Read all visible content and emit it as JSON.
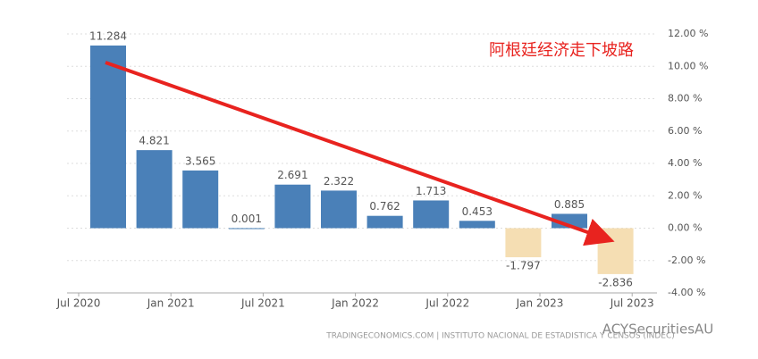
{
  "chart_data": {
    "type": "bar",
    "annotation": "阿根廷经济走下坡路",
    "source": "TRADINGECONOMICS.COM | INSTITUTO NACIONAL DE ESTADISTICA Y CENSOS (INDEC)",
    "watermark": "ACYSecuritiesAU",
    "categories": [
      "Jul 2020",
      null,
      "Jan 2021",
      null,
      "Jul 2021",
      null,
      "Jan 2022",
      null,
      "Jul 2022",
      null,
      "Jan 2023",
      null,
      "Jul 2023"
    ],
    "values": [
      11.284,
      4.821,
      3.565,
      0.001,
      2.691,
      2.322,
      0.762,
      1.713,
      0.453,
      -1.797,
      0.885,
      -2.836,
      null
    ],
    "color": "#4a80b8",
    "negative_color": "#f5deb3",
    "ylim": [
      -4,
      12
    ],
    "yticks": [
      {
        "value": -4,
        "label": "-4.00 %"
      },
      {
        "value": -2,
        "label": "-2.00 %"
      },
      {
        "value": 0,
        "label": "0.00 %"
      },
      {
        "value": 2,
        "label": "2.00 %"
      },
      {
        "value": 4,
        "label": "4.00 %"
      },
      {
        "value": 6,
        "label": "6.00 %"
      },
      {
        "value": 8,
        "label": "8.00 %"
      },
      {
        "value": 10,
        "label": "10.00 %"
      },
      {
        "value": 12,
        "label": "12.00 %"
      }
    ],
    "grid": true
  }
}
